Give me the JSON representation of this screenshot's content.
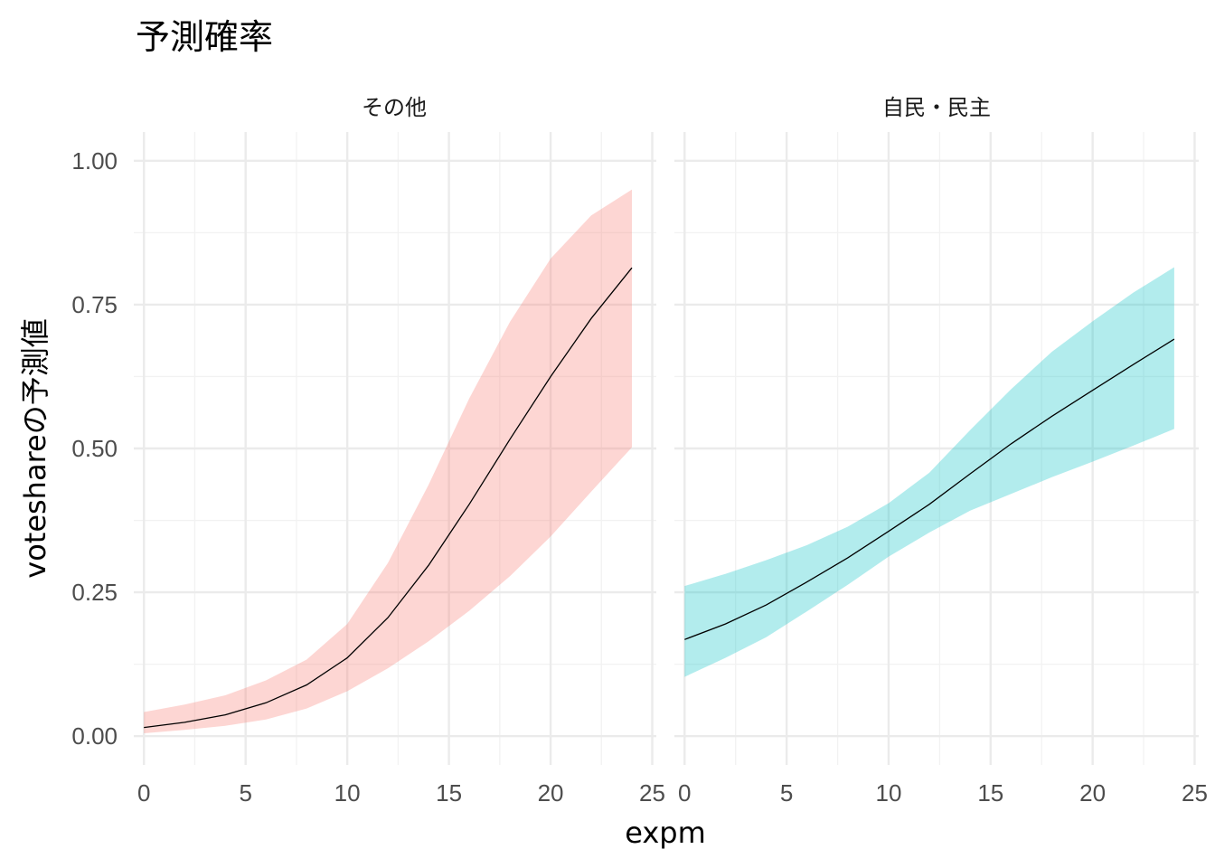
{
  "title": "予測確率",
  "xlabel": "expm",
  "ylabel": "voteshareの予測値",
  "chart_data": {
    "type": "line",
    "title": "予測確率",
    "xlabel": "expm",
    "ylabel": "voteshareの予測値",
    "xlim": [
      -0.5,
      25.2
    ],
    "ylim": [
      -0.05,
      1.05
    ],
    "x_ticks": [
      0,
      5,
      10,
      15,
      20,
      25
    ],
    "x_tick_labels": [
      "0",
      "5",
      "10",
      "15",
      "20",
      "25"
    ],
    "y_ticks": [
      0,
      0.25,
      0.5,
      0.75,
      1
    ],
    "y_tick_labels": [
      "0.00",
      "0.25",
      "0.50",
      "0.75",
      "1.00"
    ],
    "grid": true,
    "legend": "none",
    "panels": [
      {
        "strip": "その他",
        "ribbon_color": "#F8766D",
        "ribbon_opacity": 0.3,
        "line_color": "#000000",
        "x": [
          0,
          2,
          4,
          6,
          8,
          10,
          12,
          14,
          16,
          18,
          20,
          22,
          24
        ],
        "y": [
          0.015,
          0.024,
          0.037,
          0.058,
          0.089,
          0.136,
          0.206,
          0.297,
          0.403,
          0.516,
          0.625,
          0.726,
          0.814
        ],
        "lower": [
          0.005,
          0.011,
          0.018,
          0.029,
          0.048,
          0.078,
          0.118,
          0.165,
          0.218,
          0.278,
          0.347,
          0.425,
          0.502
        ],
        "upper": [
          0.042,
          0.055,
          0.071,
          0.097,
          0.133,
          0.195,
          0.301,
          0.437,
          0.587,
          0.72,
          0.83,
          0.905,
          0.95
        ]
      },
      {
        "strip": "自民・民主",
        "ribbon_color": "#00BFC4",
        "ribbon_opacity": 0.3,
        "line_color": "#000000",
        "x": [
          0,
          2,
          4,
          6,
          8,
          10,
          12,
          14,
          16,
          18,
          20,
          22,
          24
        ],
        "y": [
          0.168,
          0.195,
          0.228,
          0.268,
          0.31,
          0.356,
          0.403,
          0.456,
          0.508,
          0.556,
          0.601,
          0.646,
          0.69
        ],
        "lower": [
          0.103,
          0.136,
          0.172,
          0.217,
          0.263,
          0.312,
          0.354,
          0.392,
          0.421,
          0.45,
          0.477,
          0.505,
          0.534
        ],
        "upper": [
          0.261,
          0.282,
          0.306,
          0.332,
          0.364,
          0.405,
          0.458,
          0.532,
          0.603,
          0.668,
          0.721,
          0.771,
          0.815
        ]
      }
    ]
  }
}
